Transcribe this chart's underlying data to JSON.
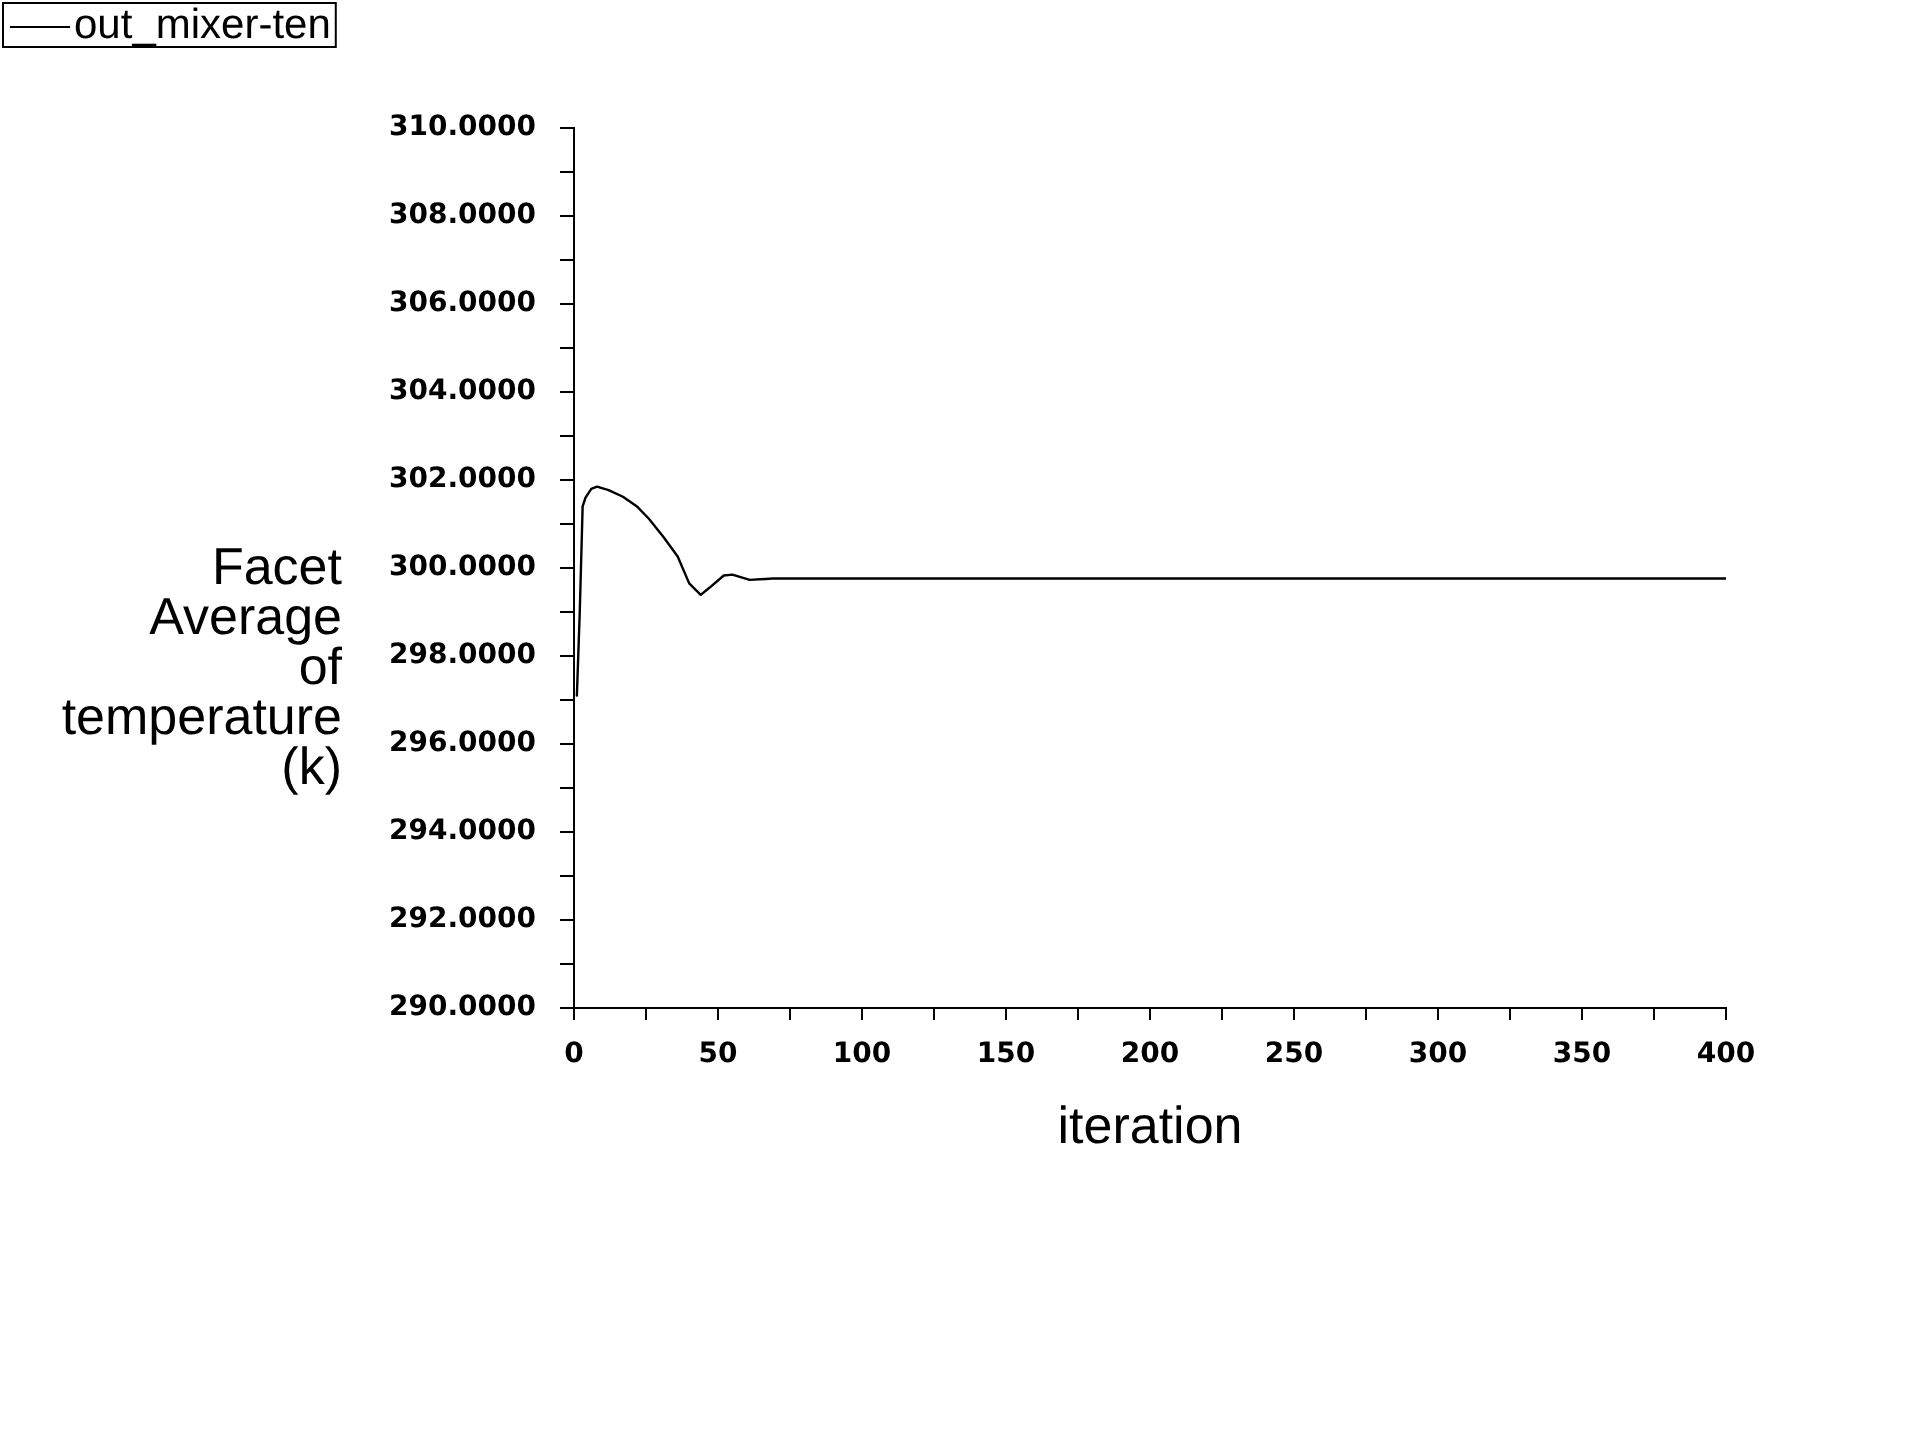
{
  "chart_data": {
    "type": "line",
    "xlabel": "iteration",
    "ylabel": "Facet Average of temperature (k)",
    "x": [
      1,
      2,
      3,
      4,
      6,
      8,
      12,
      17,
      22,
      26,
      31,
      36,
      40,
      44,
      47,
      52,
      55,
      61,
      69,
      100,
      200,
      300,
      400
    ],
    "series": [
      {
        "name": "out_mixer-ten",
        "color": "#000000",
        "values": [
          297.1,
          299.0,
          301.4,
          301.6,
          301.8,
          301.85,
          301.77,
          301.62,
          301.39,
          301.12,
          300.71,
          300.26,
          299.65,
          299.39,
          299.55,
          299.83,
          299.85,
          299.73,
          299.76,
          299.76,
          299.76,
          299.76,
          299.76
        ]
      }
    ],
    "xlim": [
      0,
      400
    ],
    "xticks": [
      0,
      {
        "value": 25,
        "label": null
      },
      50,
      {
        "value": 75,
        "label": null
      },
      100,
      {
        "value": 125,
        "label": null
      },
      150,
      {
        "value": 175,
        "label": null
      },
      200,
      {
        "value": 225,
        "label": null
      },
      250,
      {
        "value": 275,
        "label": null
      },
      300,
      {
        "value": 325,
        "label": null
      },
      350,
      {
        "value": 375,
        "label": null
      },
      400
    ],
    "ylim": [
      290,
      310
    ],
    "yticks": [
      {
        "value": 290,
        "label": "290.0000"
      },
      {
        "value": 291,
        "label": null
      },
      {
        "value": 292,
        "label": "292.0000"
      },
      {
        "value": 293,
        "label": null
      },
      {
        "value": 294,
        "label": "294.0000"
      },
      {
        "value": 295,
        "label": null
      },
      {
        "value": 296,
        "label": "296.0000"
      },
      {
        "value": 297,
        "label": null
      },
      {
        "value": 298,
        "label": "298.0000"
      },
      {
        "value": 299,
        "label": null
      },
      {
        "value": 300,
        "label": "300.0000"
      },
      {
        "value": 301,
        "label": null
      },
      {
        "value": 302,
        "label": "302.0000"
      },
      {
        "value": 303,
        "label": null
      },
      {
        "value": 304,
        "label": "304.0000"
      },
      {
        "value": 305,
        "label": null
      },
      {
        "value": 306,
        "label": "306.0000"
      },
      {
        "value": 307,
        "label": null
      },
      {
        "value": 308,
        "label": "308.0000"
      },
      {
        "value": 309,
        "label": null
      },
      {
        "value": 310,
        "label": "310.0000"
      }
    ],
    "legend": "top left",
    "grid": false,
    "marker": "none",
    "line_style": "solid"
  }
}
